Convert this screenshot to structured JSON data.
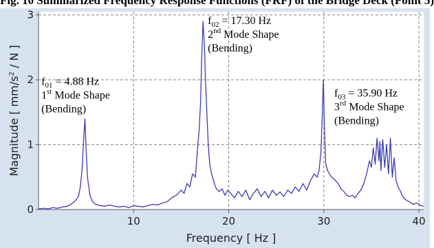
{
  "header_fragment": "Fig. 10 Summarized Frequency Response Functions (FRF) of the Bridge Deck (Point 5)",
  "chart_data": {
    "type": "line",
    "xlabel": "Frequency [ Hz ]",
    "ylabel_main": "Magnitude [ mm/s",
    "ylabel_sup": "2",
    "ylabel_tail": " / N ]",
    "xlim": [
      0,
      40.5
    ],
    "ylim": [
      0,
      3.05
    ],
    "xticks": [
      10,
      20,
      30,
      40
    ],
    "yticks": [
      0,
      1,
      2,
      3
    ],
    "grid": true,
    "colors": {
      "line": "#3a3ab4",
      "grid": "#808080",
      "panel": "#d6e2f0"
    },
    "series": [
      {
        "x": [
          0.0,
          0.5,
          1.0,
          1.5,
          2.0,
          2.5,
          3.0,
          3.3,
          3.6,
          3.9,
          4.2,
          4.4,
          4.6,
          4.75,
          4.88,
          5.0,
          5.15,
          5.4,
          5.7,
          6.0,
          6.5,
          7.0,
          7.5,
          8.0,
          8.5,
          9.0,
          9.5,
          10.0,
          10.5,
          11.0,
          11.5,
          12.0,
          12.5,
          13.0,
          13.5,
          14.0,
          14.5,
          15.0,
          15.3,
          15.6,
          15.9,
          16.2,
          16.5,
          16.7,
          16.9,
          17.05,
          17.15,
          17.3,
          17.45,
          17.55,
          17.7,
          17.85,
          18.0,
          18.2,
          18.4,
          18.6,
          18.8,
          19.0,
          19.3,
          19.6,
          19.9,
          20.2,
          20.6,
          21.0,
          21.4,
          21.8,
          22.2,
          22.6,
          23.0,
          23.4,
          23.8,
          24.2,
          24.6,
          25.0,
          25.4,
          25.8,
          26.2,
          26.6,
          27.0,
          27.4,
          27.8,
          28.2,
          28.6,
          29.0,
          29.3,
          29.5,
          29.7,
          29.85,
          29.95,
          30.05,
          30.2,
          30.4,
          30.6,
          30.8,
          31.0,
          31.2,
          31.5,
          31.8,
          32.1,
          32.4,
          32.7,
          33.0,
          33.3,
          33.6,
          33.9,
          34.2,
          34.5,
          34.8,
          35.0,
          35.2,
          35.4,
          35.6,
          35.8,
          35.9,
          36.0,
          36.2,
          36.4,
          36.6,
          36.8,
          37.0,
          37.2,
          37.4,
          37.6,
          37.8,
          38.0,
          38.3,
          38.6,
          39.0,
          39.4,
          39.8,
          40.2,
          40.5
        ],
        "y": [
          0.01,
          0.02,
          0.01,
          0.03,
          0.02,
          0.04,
          0.05,
          0.07,
          0.1,
          0.14,
          0.2,
          0.35,
          0.65,
          1.1,
          1.4,
          0.95,
          0.5,
          0.22,
          0.12,
          0.08,
          0.06,
          0.05,
          0.07,
          0.05,
          0.04,
          0.05,
          0.03,
          0.06,
          0.05,
          0.04,
          0.06,
          0.08,
          0.07,
          0.1,
          0.12,
          0.18,
          0.22,
          0.3,
          0.25,
          0.4,
          0.35,
          0.55,
          0.5,
          0.9,
          1.25,
          1.7,
          2.3,
          2.9,
          2.5,
          2.0,
          1.5,
          1.0,
          0.7,
          0.55,
          0.45,
          0.35,
          0.3,
          0.28,
          0.32,
          0.22,
          0.3,
          0.25,
          0.18,
          0.28,
          0.2,
          0.3,
          0.15,
          0.25,
          0.32,
          0.2,
          0.28,
          0.18,
          0.3,
          0.22,
          0.27,
          0.2,
          0.3,
          0.25,
          0.35,
          0.28,
          0.4,
          0.3,
          0.45,
          0.55,
          0.5,
          0.6,
          0.9,
          1.5,
          2.0,
          1.3,
          0.7,
          0.6,
          0.55,
          0.5,
          0.48,
          0.45,
          0.4,
          0.32,
          0.28,
          0.22,
          0.2,
          0.22,
          0.18,
          0.25,
          0.3,
          0.4,
          0.55,
          0.75,
          0.65,
          0.95,
          0.7,
          1.1,
          0.75,
          1.05,
          0.6,
          1.08,
          0.65,
          1.0,
          0.55,
          1.1,
          0.5,
          0.8,
          0.45,
          0.35,
          0.3,
          0.2,
          0.15,
          0.12,
          0.08,
          0.1,
          0.06,
          0.05
        ]
      }
    ],
    "annotations": [
      {
        "id": "f01",
        "label_pre": "f",
        "label_sub": "01",
        "label_post": " = 4.88 Hz",
        "line2_pre": "1",
        "line2_sup": "st",
        "line2_post": " Mode Shape",
        "line3": "(Bending)",
        "x": 0.3,
        "y": 1.92
      },
      {
        "id": "f02",
        "label_pre": "f",
        "label_sub": "02",
        "label_post": " = 17.30 Hz",
        "line2_pre": "2",
        "line2_sup": "nd",
        "line2_post": " Mode Shape",
        "line3": "(Bending)",
        "x": 17.8,
        "y": 2.86
      },
      {
        "id": "f03",
        "label_pre": "f",
        "label_sub": "03",
        "label_post": " = 35.90 Hz",
        "line2_pre": "3",
        "line2_sup": "rd",
        "line2_post": " Mode Shape",
        "line3": "(Bending)",
        "x": 31.1,
        "y": 1.74
      }
    ]
  }
}
